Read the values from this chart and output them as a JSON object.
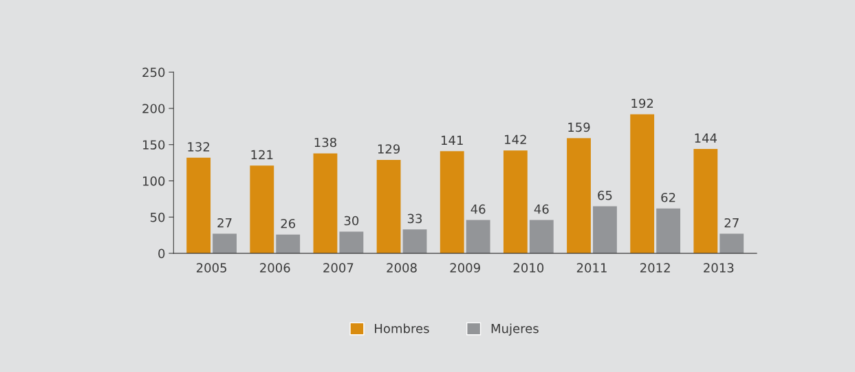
{
  "chart_data": {
    "type": "bar",
    "categories": [
      "2005",
      "2006",
      "2007",
      "2008",
      "2009",
      "2010",
      "2011",
      "2012",
      "2013"
    ],
    "series": [
      {
        "name": "Hombres",
        "color": "#d98c10",
        "values": [
          132,
          121,
          138,
          129,
          141,
          142,
          159,
          192,
          144
        ]
      },
      {
        "name": "Mujeres",
        "color": "#939598",
        "values": [
          27,
          26,
          30,
          33,
          46,
          46,
          65,
          62,
          27
        ]
      }
    ],
    "ylim": [
      0,
      250
    ],
    "yticks": [
      0,
      50,
      100,
      150,
      200,
      250
    ],
    "data_labels": true,
    "grid": false,
    "legend": "bottom"
  }
}
